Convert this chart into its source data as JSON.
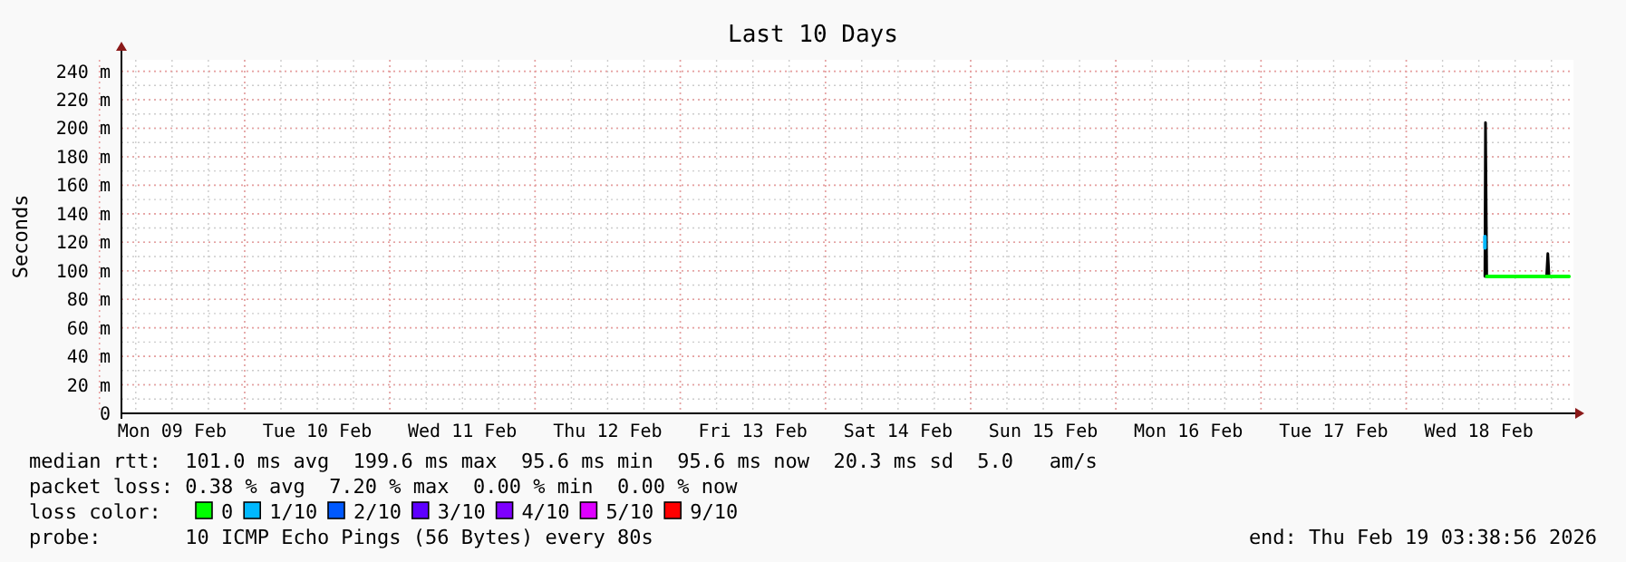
{
  "chart_data": {
    "type": "line",
    "title": "Last 10 Days",
    "ylabel": "Seconds",
    "xlim": [
      "2026-02-09T03:38",
      "2026-02-19T03:38"
    ],
    "xticks": [
      {
        "value": "2026-02-09T12:00",
        "label": "Mon 09 Feb"
      },
      {
        "value": "2026-02-10T12:00",
        "label": "Tue 10 Feb"
      },
      {
        "value": "2026-02-11T12:00",
        "label": "Wed 11 Feb"
      },
      {
        "value": "2026-02-12T12:00",
        "label": "Thu 12 Feb"
      },
      {
        "value": "2026-02-13T12:00",
        "label": "Fri 13 Feb"
      },
      {
        "value": "2026-02-14T12:00",
        "label": "Sat 14 Feb"
      },
      {
        "value": "2026-02-15T12:00",
        "label": "Sun 15 Feb"
      },
      {
        "value": "2026-02-16T12:00",
        "label": "Mon 16 Feb"
      },
      {
        "value": "2026-02-17T12:00",
        "label": "Tue 17 Feb"
      },
      {
        "value": "2026-02-18T12:00",
        "label": "Wed 18 Feb"
      }
    ],
    "ylim": [
      0,
      248
    ],
    "yticks": [
      0,
      {
        "value": 20,
        "label": "20 m"
      },
      {
        "value": 40,
        "label": "40 m"
      },
      {
        "value": 60,
        "label": "60 m"
      },
      {
        "value": 80,
        "label": "80 m"
      },
      {
        "value": 100,
        "label": "100 m"
      },
      {
        "value": 120,
        "label": "120 m"
      },
      {
        "value": 140,
        "label": "140 m"
      },
      {
        "value": 160,
        "label": "160 m"
      },
      {
        "value": 180,
        "label": "180 m"
      },
      {
        "value": 200,
        "label": "200 m"
      },
      {
        "value": 220,
        "label": "220 m"
      },
      {
        "value": 240,
        "label": "240 m"
      }
    ],
    "grid": true,
    "legend": "bottom",
    "legend_title": "loss color:",
    "marker": "none",
    "line_style": "solid",
    "series": [
      {
        "color": "#000000",
        "x": [
          "2026-02-18T13:00",
          "2026-02-18T13:06",
          "2026-02-18T13:18",
          "2026-02-18T23:12",
          "2026-02-18T23:24",
          "2026-02-18T23:36"
        ],
        "values": [
          96,
          204,
          96,
          96,
          112,
          96
        ]
      },
      {
        "name": "0",
        "color": "#00ff00",
        "x": [
          "2026-02-18T13:18",
          "2026-02-18T15:00",
          "2026-02-18T17:00",
          "2026-02-18T19:00",
          "2026-02-18T21:00",
          "2026-02-18T23:12",
          "2026-02-18T23:36",
          "2026-02-19T01:00",
          "2026-02-19T02:54"
        ],
        "values": [
          96,
          96,
          96,
          96,
          96,
          96,
          96,
          96,
          96
        ]
      },
      {
        "name": "1/10",
        "color": "#00b8ff",
        "x": [
          "2026-02-18T13:00",
          "2026-02-18T13:00"
        ],
        "values": [
          116,
          124
        ]
      },
      {
        "name": "2/10",
        "color": "#0059ff"
      },
      {
        "name": "3/10",
        "color": "#5e00ff"
      },
      {
        "name": "4/10",
        "color": "#7e00ff"
      },
      {
        "name": "5/10",
        "color": "#dd00ff"
      },
      {
        "name": "9/10",
        "color": "#ff0000"
      }
    ],
    "annotations": [
      "median rtt:  101.0 ms avg  199.6 ms max  95.6 ms min  95.6 ms now  20.3 ms sd  5.0   am/s",
      "packet loss: 0.38 % avg  7.20 % max  0.00 % min  0.00 % now",
      "probe:       10 ICMP Echo Pings (56 Bytes) every 80s",
      "end: Thu Feb 19 03:38:56 2026"
    ]
  }
}
